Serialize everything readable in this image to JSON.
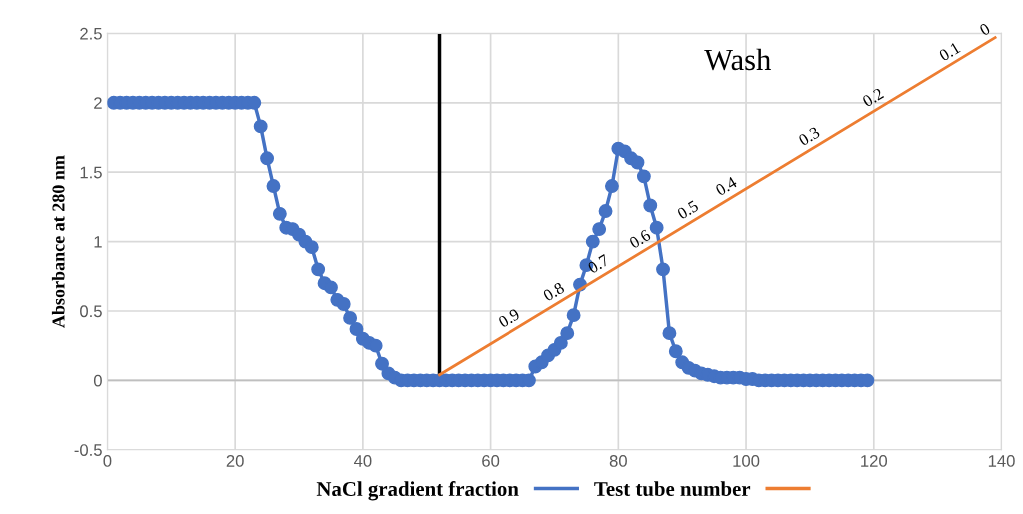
{
  "chart_data": {
    "type": "line",
    "ylabel": "Absorbance at 280 nm",
    "xlim": [
      0,
      140
    ],
    "xticks": [
      0,
      20,
      40,
      60,
      80,
      100,
      120,
      140
    ],
    "ylim": [
      -0.5,
      2.5
    ],
    "yticks": [
      -0.5,
      0,
      0.5,
      1,
      1.5,
      2,
      2.5
    ],
    "grid": true,
    "legend": "bottom",
    "series": [
      {
        "name": "NaCl gradient fraction",
        "color": "#4472c4",
        "marker": "circle",
        "x": [
          1,
          2,
          3,
          4,
          5,
          6,
          7,
          8,
          9,
          10,
          11,
          12,
          13,
          14,
          15,
          16,
          17,
          18,
          19,
          20,
          21,
          22,
          23,
          24,
          25,
          26,
          27,
          28,
          29,
          30,
          31,
          32,
          33,
          34,
          35,
          36,
          37,
          38,
          39,
          40,
          41,
          42,
          43,
          44,
          45,
          46,
          47,
          48,
          49,
          50,
          51,
          52,
          53,
          54,
          55,
          56,
          57,
          58,
          59,
          60,
          61,
          62,
          63,
          64,
          65,
          66,
          67,
          68,
          69,
          70,
          71,
          72,
          73,
          74,
          75,
          76,
          77,
          78,
          79,
          80,
          81,
          82,
          83,
          84,
          85,
          86,
          87,
          88,
          89,
          90,
          91,
          92,
          93,
          94,
          95,
          96,
          97,
          98,
          99,
          100,
          101,
          102,
          103,
          104,
          105,
          106,
          107,
          108,
          109,
          110,
          111,
          112,
          113,
          114,
          115,
          116,
          117,
          118,
          119
        ],
        "values": [
          2,
          2,
          2,
          2,
          2,
          2,
          2,
          2,
          2,
          2,
          2,
          2,
          2,
          2,
          2,
          2,
          2,
          2,
          2,
          2,
          2,
          2,
          2,
          1.83,
          1.6,
          1.4,
          1.2,
          1.1,
          1.09,
          1.05,
          1.0,
          0.96,
          0.8,
          0.7,
          0.67,
          0.58,
          0.55,
          0.45,
          0.37,
          0.3,
          0.27,
          0.25,
          0.12,
          0.05,
          0.02,
          0,
          0,
          0,
          0,
          0,
          0,
          0,
          0,
          0,
          0,
          0,
          0,
          0,
          0,
          0,
          0,
          0,
          0,
          0,
          0,
          0,
          0.1,
          0.13,
          0.18,
          0.22,
          0.27,
          0.34,
          0.47,
          0.69,
          0.83,
          1.0,
          1.09,
          1.22,
          1.4,
          1.67,
          1.65,
          1.6,
          1.57,
          1.47,
          1.26,
          1.1,
          0.8,
          0.34,
          0.21,
          0.13,
          0.09,
          0.07,
          0.05,
          0.04,
          0.03,
          0.02,
          0.02,
          0.02,
          0.02,
          0.01,
          0.01,
          0,
          0,
          0,
          0,
          0,
          0,
          0,
          0,
          0,
          0,
          0,
          0,
          0,
          0,
          0,
          0,
          0,
          0
        ]
      },
      {
        "name": "Test tube number",
        "color": "#ed7d31",
        "marker": "none",
        "x": [
          52,
          139
        ],
        "values": [
          0.04,
          2.47
        ]
      }
    ],
    "ref_lines": [
      {
        "axis": "x",
        "value": 52,
        "color": "#000000"
      }
    ],
    "annotations": [
      "Wash",
      {
        "text": "0.9",
        "x": 63,
        "y": 0.35
      },
      {
        "text": "0.8",
        "x": 70,
        "y": 0.54
      },
      {
        "text": "0.7",
        "x": 77,
        "y": 0.74
      },
      {
        "text": "0.6",
        "x": 83.5,
        "y": 0.92
      },
      {
        "text": "0.5",
        "x": 91,
        "y": 1.13
      },
      {
        "text": "0.4",
        "x": 97,
        "y": 1.3
      },
      {
        "text": "0.3",
        "x": 110,
        "y": 1.66
      },
      {
        "text": "0.2",
        "x": 120,
        "y": 1.94
      },
      {
        "text": "0.1",
        "x": 132,
        "y": 2.27
      },
      {
        "text": "0",
        "x": 137.5,
        "y": 2.43
      }
    ]
  }
}
